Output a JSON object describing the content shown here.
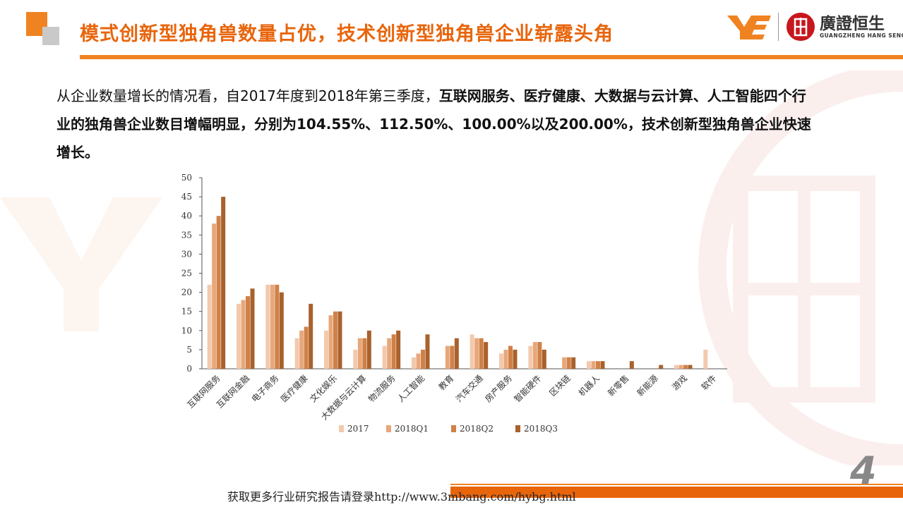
{
  "header": {
    "title": "模式创新型独角兽数量占优，技术创新型独角兽企业崭露头角",
    "logo_name_cn": "廣證恒生",
    "logo_name_en": "GUANGZHENG HANG SENG"
  },
  "intro": {
    "normal_text": "从企业数量增长的情况看，自2017年度到2018年第三季度，",
    "bold_text": "互联网服务、医疗健康、大数据与云计算、人工智能四个行业的独角兽企业数目增幅明显，分别为104.55%、112.50%、100.00%以及200.00%，技术创新型独角兽企业快速增长。"
  },
  "chart_data": {
    "type": "bar",
    "categories": [
      "互联网服务",
      "互联网金融",
      "电子商务",
      "医疗健康",
      "文化娱乐",
      "大数据与云计算",
      "物流服务",
      "人工智能",
      "教育",
      "汽车交通",
      "房产服务",
      "智能硬件",
      "区块链",
      "机器人",
      "新零售",
      "新能源",
      "游戏",
      "软件"
    ],
    "series": [
      {
        "name": "2017",
        "color": "#f3c9ad",
        "values": [
          22,
          17,
          22,
          8,
          10,
          5,
          6,
          3,
          0,
          9,
          4,
          6,
          0,
          2,
          0,
          0,
          1,
          5
        ]
      },
      {
        "name": "2018Q1",
        "color": "#e8a77a",
        "values": [
          38,
          18,
          22,
          10,
          14,
          8,
          8,
          4,
          6,
          8,
          5,
          7,
          3,
          2,
          0,
          0,
          1,
          0
        ]
      },
      {
        "name": "2018Q2",
        "color": "#cf8148",
        "values": [
          40,
          19,
          22,
          11,
          15,
          8,
          9,
          5,
          6,
          8,
          6,
          7,
          3,
          2,
          0,
          0,
          1,
          0
        ]
      },
      {
        "name": "2018Q3",
        "color": "#a9612d",
        "values": [
          45,
          21,
          20,
          17,
          15,
          10,
          10,
          9,
          8,
          7,
          5,
          5,
          3,
          2,
          2,
          1,
          1,
          0
        ]
      }
    ],
    "yticks": [
      0,
      5,
      10,
      15,
      20,
      25,
      30,
      35,
      40,
      45,
      50
    ],
    "ylim": [
      0,
      50
    ],
    "legend_position": "bottom"
  },
  "footer": {
    "text": "获取更多行业研究报告请登录http://www.3mbang.com/hybg.html",
    "page_number": "4"
  }
}
